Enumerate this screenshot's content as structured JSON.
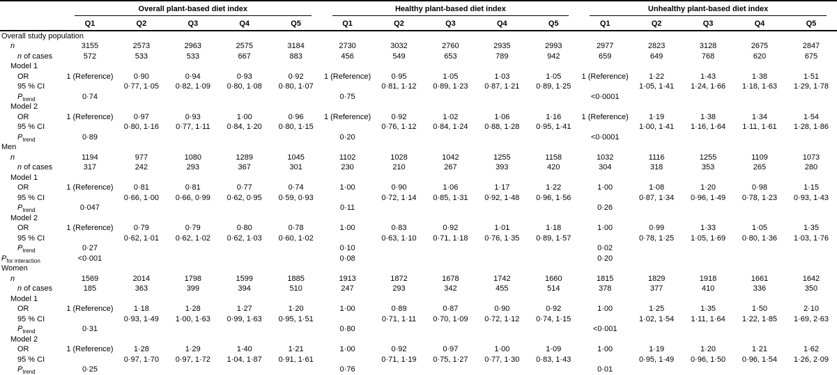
{
  "table": {
    "groups": [
      "Overall plant-based diet index",
      "Healthy plant-based diet index",
      "Unhealthy plant-based diet index"
    ],
    "quintiles": [
      "Q1",
      "Q2",
      "Q3",
      "Q4",
      "Q5"
    ],
    "sections": [
      {
        "title": "Overall study population",
        "rows": [
          {
            "parts": [
              {
                "t": "n",
                "i": true
              }
            ],
            "indent": 1,
            "cells": [
              "3155",
              "2573",
              "2963",
              "2575",
              "3184",
              "2730",
              "3032",
              "2760",
              "2935",
              "2993",
              "2977",
              "2823",
              "3128",
              "2675",
              "2847"
            ]
          },
          {
            "parts": [
              {
                "t": "n",
                "i": true
              },
              {
                "t": " of cases"
              }
            ],
            "indent": 2,
            "cells": [
              "572",
              "533",
              "533",
              "667",
              "883",
              "456",
              "549",
              "653",
              "789",
              "942",
              "659",
              "649",
              "768",
              "620",
              "675"
            ]
          },
          {
            "parts": [
              {
                "t": "Model 1"
              }
            ],
            "indent": 1,
            "cells": []
          },
          {
            "parts": [
              {
                "t": "OR"
              }
            ],
            "indent": 2,
            "cells": [
              "1 (Reference)",
              "0·90",
              "0·94",
              "0·93",
              "0·92",
              "1 (Reference)",
              "0·95",
              "1·05",
              "1·03",
              "1·05",
              "1 (Reference)",
              "1·22",
              "1·43",
              "1·38",
              "1·51"
            ]
          },
          {
            "parts": [
              {
                "t": "95 % CI"
              }
            ],
            "indent": 2,
            "cells": [
              "",
              "0·77, 1·05",
              "0·82, 1·09",
              "0·80, 1·08",
              "0·80, 1·07",
              "",
              "0·81, 1·12",
              "0·89, 1·23",
              "0·87, 1·21",
              "0·89, 1·25",
              "",
              "1·05, 1·41",
              "1·24, 1·66",
              "1·18, 1·63",
              "1·29, 1·78"
            ]
          },
          {
            "parts": [
              {
                "t": "P",
                "i": true
              },
              {
                "t": "trend",
                "sub": true
              }
            ],
            "indent": 2,
            "cells": [
              "0·74",
              "",
              "",
              "",
              "",
              "0·75",
              "",
              "",
              "",
              "",
              "<0·0001",
              "",
              "",
              "",
              ""
            ]
          },
          {
            "parts": [
              {
                "t": "Model 2"
              }
            ],
            "indent": 1,
            "cells": []
          },
          {
            "parts": [
              {
                "t": "OR"
              }
            ],
            "indent": 2,
            "cells": [
              "1 (Reference)",
              "0·97",
              "0·93",
              "1·00",
              "0·96",
              "1 (Reference)",
              "0·92",
              "1·02",
              "1·06",
              "1·16",
              "1 (Reference)",
              "1·19",
              "1·38",
              "1·34",
              "1·54"
            ]
          },
          {
            "parts": [
              {
                "t": "95 % CI"
              }
            ],
            "indent": 2,
            "cells": [
              "",
              "0·80, 1·16",
              "0·77, 1·11",
              "0·84, 1·20",
              "0·80, 1·15",
              "",
              "0·76, 1·12",
              "0·84, 1·24",
              "0·88, 1·28",
              "0·95, 1·41",
              "",
              "1·00, 1·41",
              "1·16, 1·64",
              "1·11, 1·61",
              "1·28, 1·86"
            ]
          },
          {
            "parts": [
              {
                "t": "P",
                "i": true
              },
              {
                "t": "trend",
                "sub": true
              }
            ],
            "indent": 2,
            "cells": [
              "0·89",
              "",
              "",
              "",
              "",
              "0·20",
              "",
              "",
              "",
              "",
              "<0·0001",
              "",
              "",
              "",
              ""
            ]
          }
        ]
      },
      {
        "title": "Men",
        "rows": [
          {
            "parts": [
              {
                "t": "n",
                "i": true
              }
            ],
            "indent": 1,
            "cells": [
              "1194",
              "977",
              "1080",
              "1289",
              "1045",
              "1102",
              "1028",
              "1042",
              "1255",
              "1158",
              "1032",
              "1116",
              "1255",
              "1109",
              "1073"
            ]
          },
          {
            "parts": [
              {
                "t": "n",
                "i": true
              },
              {
                "t": " of cases"
              }
            ],
            "indent": 2,
            "cells": [
              "317",
              "242",
              "293",
              "367",
              "301",
              "230",
              "210",
              "267",
              "393",
              "420",
              "304",
              "318",
              "353",
              "265",
              "280"
            ]
          },
          {
            "parts": [
              {
                "t": "Model 1"
              }
            ],
            "indent": 1,
            "cells": []
          },
          {
            "parts": [
              {
                "t": "OR"
              }
            ],
            "indent": 2,
            "cells": [
              "1 (Reference)",
              "0·81",
              "0·81",
              "0·77",
              "0·74",
              "1·00",
              "0·90",
              "1·06",
              "1·17",
              "1·22",
              "1·00",
              "1·08",
              "1·20",
              "0·98",
              "1·15"
            ]
          },
          {
            "parts": [
              {
                "t": "95 % CI"
              }
            ],
            "indent": 2,
            "cells": [
              "",
              "0·66, 1·00",
              "0·66, 0·99",
              "0·62, 0·95",
              "0·59, 0·93",
              "",
              "0·72, 1·14",
              "0·85, 1·31",
              "0·92, 1·48",
              "0·96, 1·56",
              "",
              "0·87, 1·34",
              "0·96, 1·49",
              "0·78, 1·23",
              "0·93, 1·43"
            ]
          },
          {
            "parts": [
              {
                "t": "P",
                "i": true
              },
              {
                "t": "trend",
                "sub": true
              }
            ],
            "indent": 2,
            "cells": [
              "0·047",
              "",
              "",
              "",
              "",
              "0·11",
              "",
              "",
              "",
              "",
              "0·26",
              "",
              "",
              "",
              ""
            ]
          },
          {
            "parts": [
              {
                "t": "Model 2"
              }
            ],
            "indent": 1,
            "cells": []
          },
          {
            "parts": [
              {
                "t": "OR"
              }
            ],
            "indent": 2,
            "cells": [
              "1 (Reference)",
              "0·79",
              "0·79",
              "0·80",
              "0·78",
              "1·00",
              "0·83",
              "0·92",
              "1·01",
              "1·18",
              "1·00",
              "0·99",
              "1·33",
              "1·05",
              "1·35"
            ]
          },
          {
            "parts": [
              {
                "t": "95 % CI"
              }
            ],
            "indent": 2,
            "cells": [
              "",
              "0·62, 1·01",
              "0·62, 1·02",
              "0·62, 1·03",
              "0·60, 1·02",
              "",
              "0·63, 1·10",
              "0·71, 1·18",
              "0·76, 1·35",
              "0·89, 1·57",
              "",
              "0·78, 1·25",
              "1·05, 1·69",
              "0·80, 1·36",
              "1·03, 1·76"
            ]
          },
          {
            "parts": [
              {
                "t": "P",
                "i": true
              },
              {
                "t": "trend",
                "sub": true
              }
            ],
            "indent": 2,
            "cells": [
              "0·27",
              "",
              "",
              "",
              "",
              "0·10",
              "",
              "",
              "",
              "",
              "0·02",
              "",
              "",
              "",
              ""
            ]
          },
          {
            "parts": [
              {
                "t": "P",
                "i": true
              },
              {
                "t": "for interaction",
                "sub": true
              }
            ],
            "indent": 0,
            "cells": [
              "<0·001",
              "",
              "",
              "",
              "",
              "0·08",
              "",
              "",
              "",
              "",
              "0·20",
              "",
              "",
              "",
              ""
            ]
          }
        ]
      },
      {
        "title": "Women",
        "rows": [
          {
            "parts": [
              {
                "t": "n",
                "i": true
              }
            ],
            "indent": 1,
            "cells": [
              "1569",
              "2014",
              "1798",
              "1599",
              "1885",
              "1913",
              "1872",
              "1678",
              "1742",
              "1660",
              "1815",
              "1829",
              "1918",
              "1661",
              "1642"
            ]
          },
          {
            "parts": [
              {
                "t": "n",
                "i": true
              },
              {
                "t": " of cases"
              }
            ],
            "indent": 2,
            "cells": [
              "185",
              "363",
              "399",
              "394",
              "510",
              "247",
              "293",
              "342",
              "455",
              "514",
              "378",
              "377",
              "410",
              "336",
              "350"
            ]
          },
          {
            "parts": [
              {
                "t": "Model 1"
              }
            ],
            "indent": 1,
            "cells": []
          },
          {
            "parts": [
              {
                "t": "OR"
              }
            ],
            "indent": 2,
            "cells": [
              "1 (Reference)",
              "1·18",
              "1·28",
              "1·27",
              "1·20",
              "1·00",
              "0·89",
              "0·87",
              "0·90",
              "0·92",
              "1·00",
              "1·25",
              "1·35",
              "1·50",
              "2·10"
            ]
          },
          {
            "parts": [
              {
                "t": "95 % CI"
              }
            ],
            "indent": 2,
            "cells": [
              "",
              "0·93, 1·49",
              "1·00, 1·63",
              "0·99, 1·63",
              "0·95, 1·51",
              "",
              "0·71, 1·11",
              "0·70, 1·09",
              "0·72, 1·12",
              "0·74, 1·15",
              "",
              "1·02, 1·54",
              "1·11, 1·64",
              "1·22, 1·85",
              "1·69, 2·63"
            ]
          },
          {
            "parts": [
              {
                "t": "P",
                "i": true
              },
              {
                "t": "trend",
                "sub": true
              }
            ],
            "indent": 2,
            "cells": [
              "0·31",
              "",
              "",
              "",
              "",
              "0·80",
              "",
              "",
              "",
              "",
              "<0·001",
              "",
              "",
              "",
              ""
            ]
          },
          {
            "parts": [
              {
                "t": "Model 2"
              }
            ],
            "indent": 1,
            "cells": []
          },
          {
            "parts": [
              {
                "t": "OR"
              }
            ],
            "indent": 2,
            "cells": [
              "1 (Reference)",
              "1·28",
              "1·29",
              "1·40",
              "1·21",
              "1·00",
              "0·92",
              "0·97",
              "1·00",
              "1·09",
              "1·00",
              "1·19",
              "1·20",
              "1·21",
              "1·62"
            ]
          },
          {
            "parts": [
              {
                "t": "95 % CI"
              }
            ],
            "indent": 2,
            "cells": [
              "",
              "0·97, 1·70",
              "0·97, 1·72",
              "1·04, 1·87",
              "0·91, 1·61",
              "",
              "0·71, 1·19",
              "0·75, 1·27",
              "0·77, 1·30",
              "0·83, 1·43",
              "",
              "0·95, 1·49",
              "0·96, 1·50",
              "0·96, 1·54",
              "1·26, 2·09"
            ]
          },
          {
            "parts": [
              {
                "t": "P",
                "i": true
              },
              {
                "t": "trend",
                "sub": true
              }
            ],
            "indent": 2,
            "cells": [
              "0·25",
              "",
              "",
              "",
              "",
              "0·76",
              "",
              "",
              "",
              "",
              "0·01",
              "",
              "",
              "",
              ""
            ]
          }
        ]
      }
    ]
  }
}
